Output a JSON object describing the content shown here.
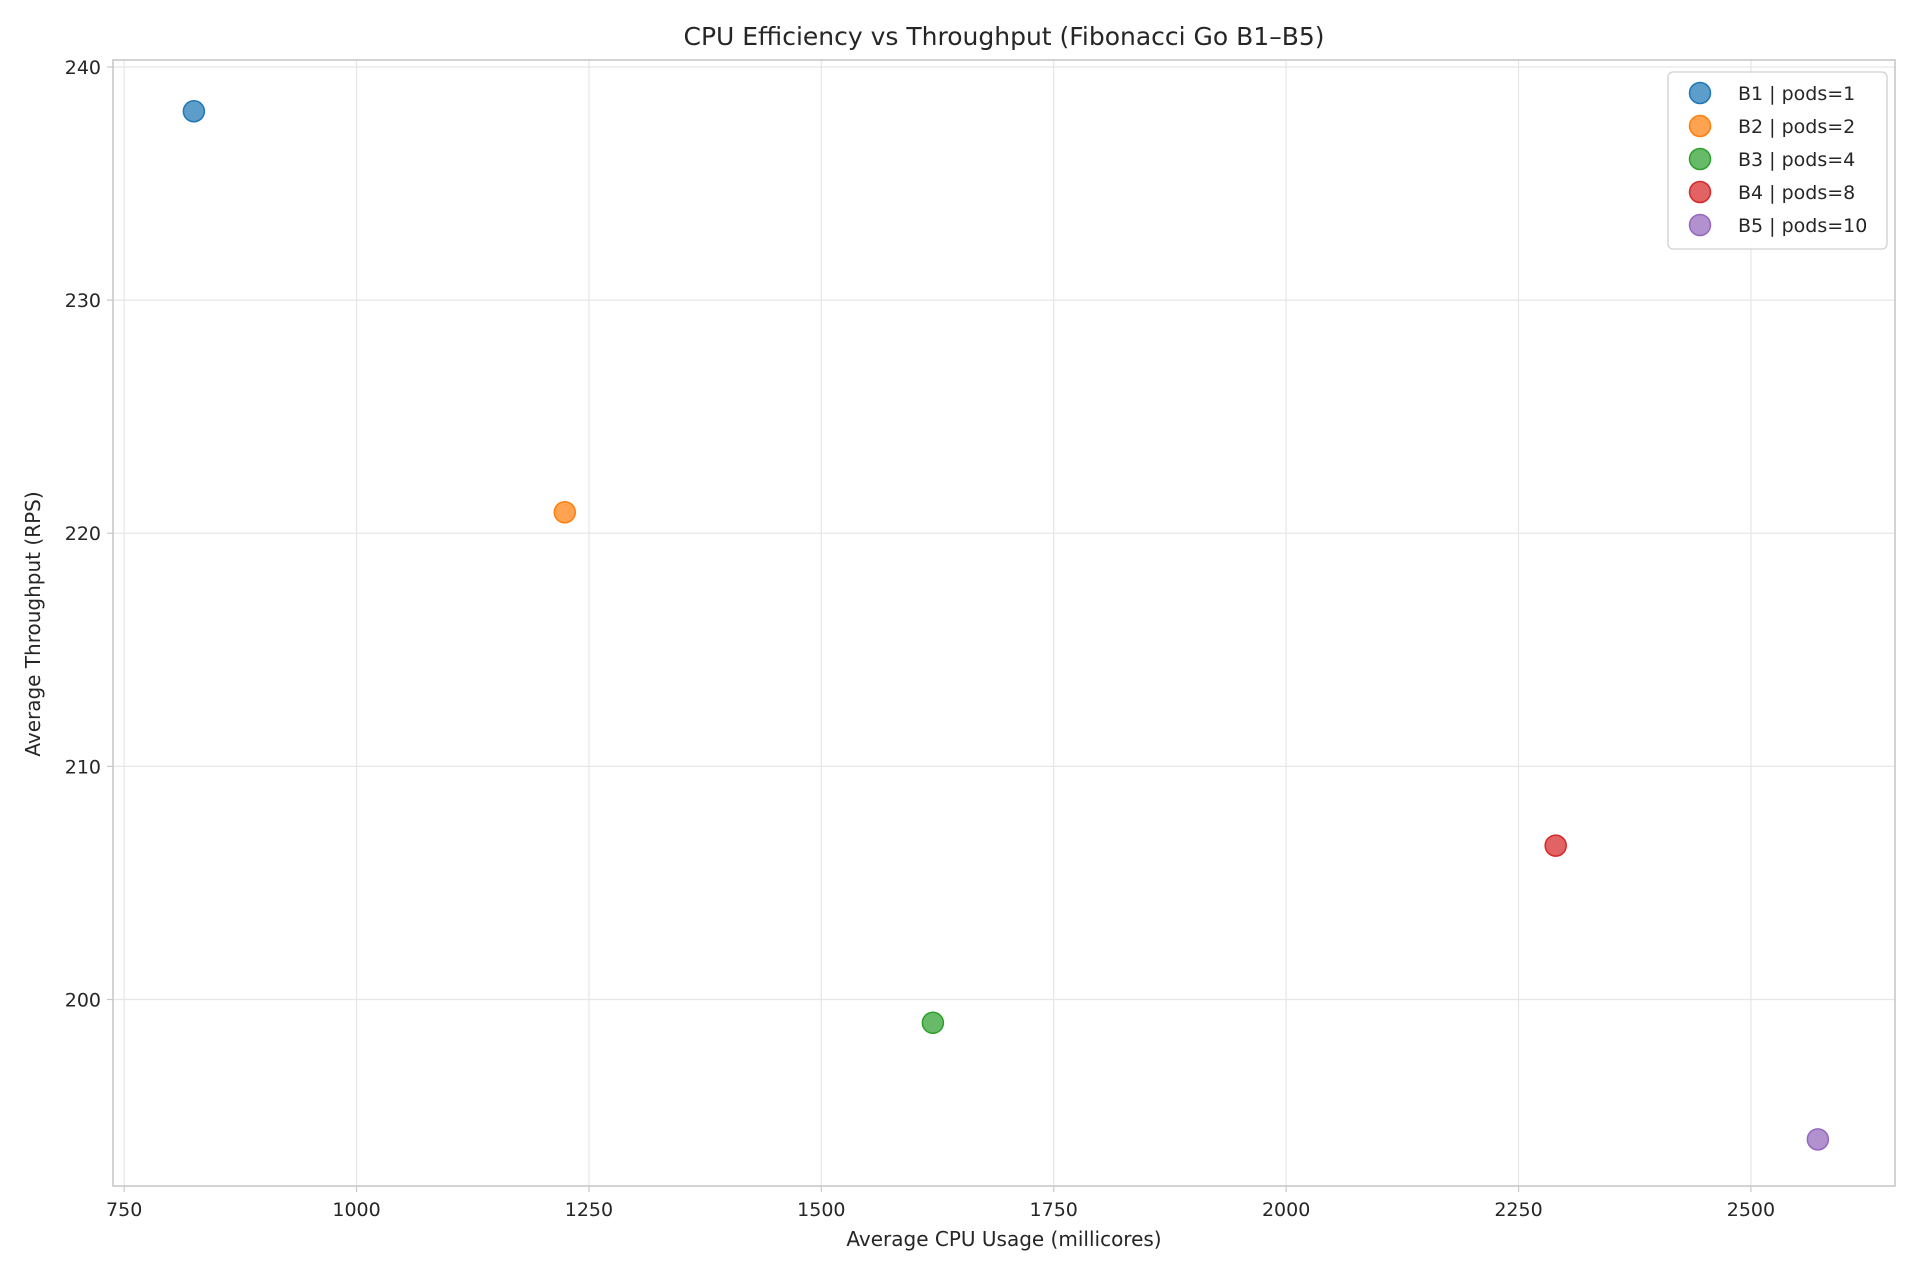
{
  "chart_data": {
    "type": "scatter",
    "title": "CPU Efficiency vs Throughput (Fibonacci Go B1–B5)",
    "xlabel": "Average CPU Usage (millicores)",
    "ylabel": "Average Throughput (RPS)",
    "xlim": [
      738,
      2655
    ],
    "ylim": [
      192,
      240.3
    ],
    "xticks": [
      750,
      1000,
      1250,
      1500,
      1750,
      2000,
      2250,
      2500
    ],
    "xtick_labels": [
      "750",
      "1000",
      "1250",
      "1500",
      "1750",
      "2000",
      "2250",
      "2500"
    ],
    "yticks": [
      200,
      210,
      220,
      230,
      240
    ],
    "ytick_labels": [
      "200",
      "210",
      "220",
      "230",
      "240"
    ],
    "grid": true,
    "legend_position": "top-right",
    "series": [
      {
        "name": "B1 | pods=1",
        "color": "#1f77b4",
        "points": [
          {
            "x": 825,
            "y": 238.1
          }
        ]
      },
      {
        "name": "B2 | pods=2",
        "color": "#ff7f0e",
        "points": [
          {
            "x": 1224,
            "y": 220.9
          }
        ]
      },
      {
        "name": "B3 | pods=4",
        "color": "#2ca02c",
        "points": [
          {
            "x": 1620,
            "y": 199.0
          }
        ]
      },
      {
        "name": "B4 | pods=8",
        "color": "#d62728",
        "points": [
          {
            "x": 2290,
            "y": 206.6
          }
        ]
      },
      {
        "name": "B5 | pods=10",
        "color": "#9467bd",
        "points": [
          {
            "x": 2572,
            "y": 194.0
          }
        ]
      }
    ]
  }
}
